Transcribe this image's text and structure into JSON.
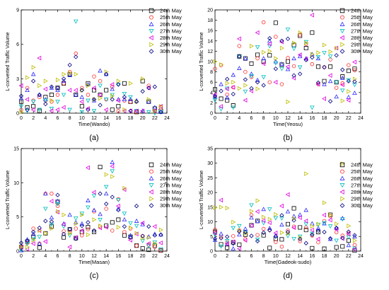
{
  "legend_labels": [
    "24th May",
    "25th May",
    "26th May",
    "27th May",
    "28th May",
    "29th May",
    "30th May"
  ],
  "series_colors": [
    "#000000",
    "#ff2a2a",
    "#2b2bff",
    "#00bcbc",
    "#e000e0",
    "#bcbc00",
    "#000080"
  ],
  "series_markers": [
    "square",
    "circle",
    "triangle-up",
    "triangle-down",
    "triangle-left",
    "triangle-right",
    "diamond"
  ],
  "chart_data": [
    {
      "type": "scatter",
      "panel_label": "(a)",
      "xlabel": "Time(Wando)",
      "ylabel": "L-converted Traffic Volume",
      "xlim": [
        0,
        24
      ],
      "ylim": [
        0,
        9
      ],
      "xticks": [
        0,
        2,
        4,
        6,
        8,
        10,
        12,
        14,
        16,
        18,
        20,
        22,
        24
      ],
      "yticks": [
        0,
        3,
        6,
        9
      ],
      "legend_position": "top-right",
      "series": [
        {
          "name": "24th May",
          "values": [
            1.0,
            0.5,
            0.6,
            0.2,
            1.4,
            1.6,
            2.2,
            2.6,
            3.4,
            1.6,
            0.6,
            2.6,
            2.0,
            1.6,
            2.0,
            0.3,
            0.6,
            2.6,
            1.0,
            0.1,
            2.8,
            1.0,
            0.4,
            0.2
          ]
        },
        {
          "name": "25th May",
          "values": [
            0.3,
            2.2,
            1.1,
            1.4,
            1.1,
            1.0,
            1.6,
            2.6,
            3.6,
            5.2,
            2.2,
            1.6,
            3.2,
            2.8,
            1.2,
            2.3,
            0.2,
            1.1,
            1.0,
            0.1,
            0.1,
            2.4,
            0.2,
            0.5
          ]
        },
        {
          "name": "26th May",
          "values": [
            1.3,
            2.0,
            3.4,
            1.6,
            1.2,
            2.2,
            2.0,
            2.8,
            3.3,
            1.6,
            1.4,
            2.5,
            1.1,
            3.7,
            3.4,
            2.1,
            1.2,
            1.2,
            1.2,
            1.1,
            0.2,
            1.0,
            0.5,
            0.1
          ]
        },
        {
          "name": "27th May",
          "values": [
            0.6,
            0.2,
            1.0,
            0.3,
            1.1,
            0.4,
            1.0,
            1.6,
            0.3,
            8.0,
            0.1,
            1.1,
            0.2,
            2.4,
            1.2,
            1.6,
            2.5,
            1.7,
            1.4,
            0.2,
            0.1,
            0.1,
            0.0,
            0.1
          ]
        },
        {
          "name": "28th May",
          "values": [
            2.4,
            1.2,
            0.3,
            4.8,
            2.1,
            0.2,
            0.3,
            0.5,
            2.0,
            2.0,
            1.0,
            0.4,
            2.2,
            1.6,
            0.3,
            2.5,
            1.1,
            0.2,
            0.2,
            0.2,
            0.2,
            2.2,
            0.2,
            0.6
          ]
        },
        {
          "name": "29th May",
          "values": [
            0.1,
            3.1,
            4.0,
            2.4,
            2.8,
            1.1,
            2.9,
            3.4,
            3.5,
            3.4,
            2.0,
            2.4,
            1.2,
            1.3,
            3.6,
            1.5,
            2.8,
            0.3,
            2.6,
            1.0,
            3.0,
            1.2,
            0.2,
            0.6
          ]
        },
        {
          "name": "30th May",
          "values": [
            1.5,
            0.3,
            2.8,
            1.6,
            0.8,
            2.3,
            2.2,
            3.0,
            4.2,
            4.9,
            2.0,
            0.3,
            1.2,
            0.7,
            3.4,
            1.2,
            2.5,
            1.4,
            0.2,
            1.0,
            1.9,
            2.2,
            2.3,
            0.1
          ]
        }
      ]
    },
    {
      "type": "scatter",
      "panel_label": "(b)",
      "xlabel": "Time(Yeosu)",
      "ylabel": "L-converted Traffic Volume",
      "xlim": [
        0,
        24
      ],
      "ylim": [
        0,
        20
      ],
      "xticks": [
        0,
        2,
        4,
        6,
        8,
        10,
        12,
        14,
        16,
        18,
        20,
        22,
        24
      ],
      "yticks": [
        0,
        2,
        4,
        6,
        8,
        10,
        12,
        14,
        16,
        18,
        20
      ],
      "legend_position": "top-right",
      "series": [
        {
          "name": "24th May",
          "values": [
            4.6,
            2.8,
            2.5,
            1.5,
            11.0,
            10.6,
            9.6,
            11.3,
            10.0,
            11.2,
            17.5,
            9.4,
            10.0,
            13.2,
            15.0,
            12.6,
            15.6,
            9.0,
            6.2,
            9.0,
            6.0,
            7.1,
            8.2,
            8.6
          ]
        },
        {
          "name": "25th May",
          "values": [
            8.6,
            9.3,
            3.6,
            5.0,
            13.0,
            8.0,
            7.0,
            10.6,
            17.6,
            6.0,
            14.8,
            5.6,
            10.7,
            9.1,
            15.2,
            13.4,
            9.5,
            5.6,
            8.9,
            10.4,
            4.9,
            5.8,
            9.3,
            8.3
          ]
        },
        {
          "name": "26th May",
          "values": [
            3.2,
            5.6,
            3.0,
            7.4,
            8.7,
            10.6,
            7.6,
            6.4,
            10.6,
            14.0,
            10.0,
            9.5,
            8.5,
            10.6,
            11.0,
            10.6,
            11.4,
            10.6,
            5.6,
            6.2,
            3.2,
            6.8,
            3.1,
            3.9
          ]
        },
        {
          "name": "27th May",
          "values": [
            2.5,
            0.8,
            4.8,
            1.1,
            10.9,
            4.2,
            7.2,
            12.8,
            7.0,
            13.0,
            9.7,
            8.6,
            16.2,
            12.5,
            8.9,
            13.8,
            1.1,
            10.9,
            11.7,
            11.0,
            6.0,
            4.4,
            6.4,
            5.5
          ]
        },
        {
          "name": "28th May",
          "values": [
            3.6,
            1.3,
            4.7,
            5.0,
            14.4,
            2.5,
            4.3,
            15.6,
            9.6,
            13.4,
            6.0,
            13.8,
            9.0,
            6.8,
            11.3,
            10.5,
            19.0,
            5.6,
            2.8,
            7.3,
            12.6,
            5.5,
            2.5,
            9.9
          ]
        },
        {
          "name": "29th May",
          "values": [
            10.0,
            9.4,
            5.8,
            6.0,
            4.8,
            5.4,
            13.0,
            4.7,
            11.8,
            12.0,
            10.6,
            12.6,
            2.2,
            13.6,
            15.6,
            13.6,
            11.4,
            11.7,
            13.2,
            11.9,
            12.6,
            2.4,
            4.2,
            6.6
          ]
        },
        {
          "name": "30th May",
          "values": [
            3.3,
            4.3,
            6.6,
            3.7,
            11.0,
            6.5,
            4.8,
            6.0,
            5.4,
            14.5,
            8.6,
            14.0,
            14.4,
            7.3,
            7.6,
            10.3,
            10.8,
            5.9,
            8.9,
            2.3,
            11.2,
            8.4,
            6.2,
            6.1
          ]
        }
      ]
    },
    {
      "type": "scatter",
      "panel_label": "(c)",
      "xlabel": "Time(Masan)",
      "ylabel": "L-converted Traffic Volume",
      "xlim": [
        0,
        24
      ],
      "ylim": [
        0,
        15
      ],
      "xticks": [
        0,
        2,
        4,
        6,
        8,
        10,
        12,
        14,
        16,
        18,
        20,
        22,
        24
      ],
      "yticks": [
        0,
        5,
        10,
        15
      ],
      "legend_position": "top-right",
      "series": [
        {
          "name": "24th May",
          "values": [
            0.6,
            1.4,
            2.1,
            0.5,
            2.6,
            3.6,
            7.2,
            2.0,
            3.2,
            1.9,
            2.8,
            3.5,
            2.8,
            12.3,
            3.7,
            4.2,
            4.6,
            2.3,
            2.1,
            0.8,
            0.4,
            0.2,
            0.8,
            0.1
          ]
        },
        {
          "name": "25th May",
          "values": [
            0.5,
            1.2,
            3.3,
            1.1,
            8.4,
            8.4,
            6.6,
            2.9,
            2.8,
            3.3,
            2.3,
            3.2,
            5.8,
            3.6,
            6.2,
            3.0,
            7.6,
            2.8,
            3.3,
            0.8,
            2.2,
            0.9,
            0.6,
            0.1
          ]
        },
        {
          "name": "26th May",
          "values": [
            0.1,
            1.7,
            2.5,
            1.1,
            8.4,
            4.9,
            7.3,
            4.0,
            5.3,
            4.2,
            4.0,
            7.4,
            6.0,
            5.4,
            8.4,
            13.0,
            6.2,
            4.6,
            2.3,
            4.4,
            3.9,
            2.1,
            2.5,
            2.4
          ]
        },
        {
          "name": "27th May",
          "values": [
            0.2,
            1.1,
            1.8,
            2.1,
            6.2,
            3.9,
            6.9,
            3.6,
            2.3,
            4.8,
            5.5,
            6.4,
            8.1,
            4.6,
            9.4,
            11.7,
            7.5,
            5.5,
            4.1,
            3.7,
            1.5,
            0.8,
            1.3,
            0.3
          ]
        },
        {
          "name": "28th May",
          "values": [
            0.6,
            0.3,
            1.1,
            3.0,
            1.4,
            7.3,
            5.7,
            3.9,
            0.6,
            2.0,
            3.0,
            12.2,
            8.6,
            3.4,
            3.5,
            12.4,
            6.6,
            9.0,
            1.6,
            2.5,
            4.1,
            1.1,
            3.6,
            1.2
          ]
        },
        {
          "name": "29th May",
          "values": [
            0.6,
            0.6,
            1.6,
            3.0,
            2.6,
            3.3,
            5.8,
            5.3,
            2.6,
            4.0,
            5.3,
            2.4,
            4.6,
            3.7,
            11.2,
            10.9,
            3.5,
            9.2,
            3.4,
            2.6,
            1.9,
            2.0,
            1.1,
            3.1
          ]
        },
        {
          "name": "30th May",
          "values": [
            1.2,
            1.5,
            2.8,
            3.4,
            4.4,
            4.3,
            8.2,
            2.5,
            3.2,
            1.8,
            3.7,
            4.2,
            3.0,
            8.4,
            6.9,
            7.9,
            6.0,
            3.6,
            2.0,
            6.6,
            2.2,
            3.6,
            2.3,
            2.4
          ]
        }
      ]
    },
    {
      "type": "scatter",
      "panel_label": "(d)",
      "xlabel": "Time(Gadeok-sudo)",
      "ylabel": "L-converted Traffic Volume",
      "xlim": [
        0,
        24
      ],
      "ylim": [
        0,
        35
      ],
      "xticks": [
        0,
        2,
        4,
        6,
        8,
        10,
        12,
        14,
        16,
        18,
        20,
        22,
        24
      ],
      "yticks": [
        0,
        5,
        10,
        15,
        20,
        25,
        30,
        35
      ],
      "legend_position": "top-right",
      "series": [
        {
          "name": "24th May",
          "values": [
            6.6,
            2.3,
            1.1,
            3.0,
            2.2,
            5.6,
            8.8,
            10.3,
            5.4,
            1.1,
            4.2,
            4.0,
            9.2,
            14.6,
            8.1,
            7.2,
            1.0,
            6.5,
            0.8,
            12.4,
            1.3,
            1.6,
            3.6,
            0.2
          ]
        },
        {
          "name": "25th May",
          "values": [
            7.3,
            4.9,
            3.0,
            5.1,
            7.1,
            4.1,
            12.3,
            5.5,
            7.6,
            7.2,
            3.1,
            1.5,
            7.0,
            8.4,
            3.4,
            8.1,
            5.3,
            3.0,
            10.3,
            11.9,
            6.4,
            5.3,
            6.0,
            2.1
          ]
        },
        {
          "name": "26th May",
          "values": [
            3.8,
            5.9,
            2.4,
            0.8,
            5.6,
            7.6,
            11.4,
            10.2,
            14.3,
            7.8,
            5.4,
            9.0,
            13.5,
            11.9,
            12.4,
            14.0,
            9.4,
            7.8,
            9.4,
            4.1,
            7.9,
            11.2,
            2.0,
            4.9
          ]
        },
        {
          "name": "27th May",
          "values": [
            5.6,
            1.6,
            3.5,
            7.9,
            8.6,
            6.3,
            15.7,
            4.0,
            9.6,
            14.3,
            11.3,
            11.2,
            5.2,
            4.2,
            5.0,
            9.2,
            6.0,
            9.0,
            9.5,
            8.5,
            3.6,
            10.9,
            4.8,
            0.9
          ]
        },
        {
          "name": "28th May",
          "values": [
            6.2,
            17.4,
            2.5,
            3.2,
            0.8,
            3.7,
            8.7,
            13.5,
            10.4,
            9.7,
            6.2,
            15.4,
            19.3,
            8.0,
            11.4,
            10.3,
            7.2,
            4.1,
            12.3,
            10.6,
            7.4,
            4.3,
            5.9,
            0.6
          ]
        },
        {
          "name": "29th May",
          "values": [
            14.8,
            15.0,
            14.7,
            9.9,
            7.0,
            6.0,
            13.6,
            17.2,
            11.6,
            10.9,
            12.5,
            6.3,
            6.0,
            11.1,
            4.6,
            26.4,
            8.5,
            9.2,
            16.5,
            12.3,
            9.3,
            29.8,
            8.6,
            3.6
          ]
        },
        {
          "name": "30th May",
          "values": [
            4.2,
            4.4,
            4.9,
            2.6,
            6.7,
            6.5,
            5.2,
            3.4,
            6.3,
            7.1,
            5.0,
            12.2,
            6.5,
            10.5,
            4.1,
            2.7,
            5.6,
            7.0,
            6.5,
            4.3,
            7.9,
            4.5,
            6.6,
            5.4
          ]
        }
      ]
    }
  ]
}
